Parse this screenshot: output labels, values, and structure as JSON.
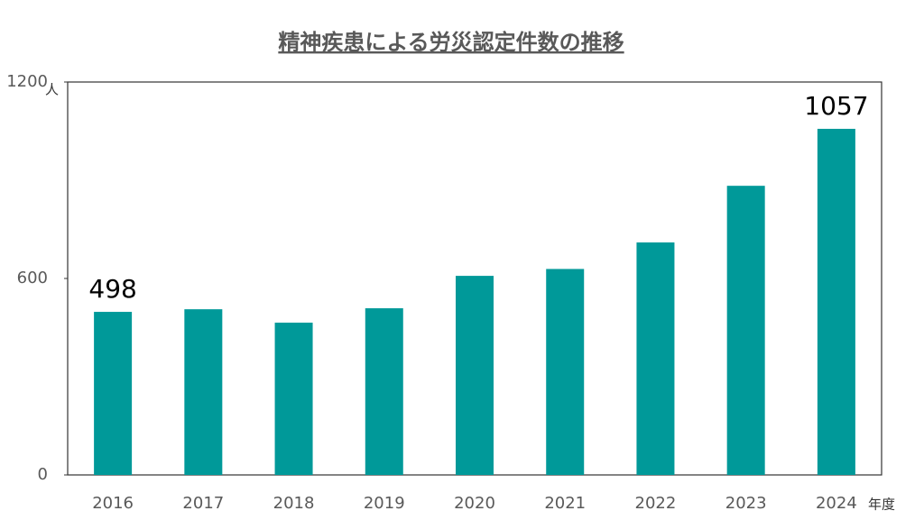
{
  "chart_data": {
    "type": "bar",
    "title": "精神疾患による労災認定件数の推移",
    "y_unit": "人",
    "x_unit": "年度",
    "categories": [
      "2016",
      "2017",
      "2018",
      "2019",
      "2020",
      "2021",
      "2022",
      "2023",
      "2024"
    ],
    "values": [
      498,
      506,
      465,
      509,
      608,
      629,
      710,
      883,
      1057
    ],
    "value_labels": [
      "498",
      null,
      null,
      null,
      null,
      null,
      null,
      null,
      "1057"
    ],
    "color": "#009999",
    "ylim": [
      0,
      1200
    ],
    "yticks": [
      0,
      600,
      1200
    ],
    "grid": false
  }
}
